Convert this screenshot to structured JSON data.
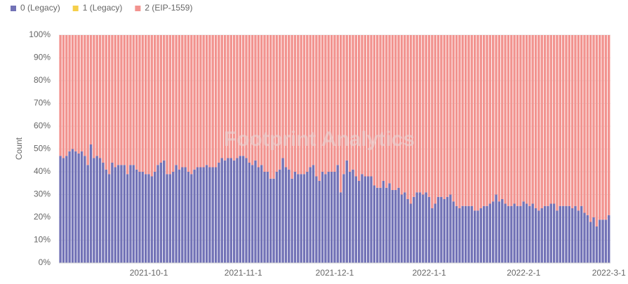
{
  "chart_data": {
    "type": "stacked_bar",
    "watermark": "Footprint Analytics",
    "y_label": "Count",
    "legend": "top-left",
    "grid": true,
    "ylim": [
      0,
      100
    ],
    "yticks": [
      {
        "value": 0,
        "label": "0%"
      },
      {
        "value": 10,
        "label": "10%"
      },
      {
        "value": 20,
        "label": "20%"
      },
      {
        "value": 30,
        "label": "30%"
      },
      {
        "value": 40,
        "label": "40%"
      },
      {
        "value": 50,
        "label": "50%"
      },
      {
        "value": 60,
        "label": "60%"
      },
      {
        "value": 70,
        "label": "70%"
      },
      {
        "value": 80,
        "label": "80%"
      },
      {
        "value": 90,
        "label": "90%"
      },
      {
        "value": 100,
        "label": "100%"
      }
    ],
    "categories": [
      null,
      null,
      null,
      null,
      null,
      null,
      null,
      null,
      null,
      null,
      null,
      null,
      null,
      null,
      null,
      null,
      null,
      null,
      null,
      null,
      null,
      null,
      null,
      null,
      null,
      null,
      null,
      null,
      null,
      "2021-10-1",
      null,
      null,
      null,
      null,
      null,
      null,
      null,
      null,
      null,
      null,
      null,
      null,
      null,
      null,
      null,
      null,
      null,
      null,
      null,
      null,
      null,
      null,
      null,
      null,
      null,
      null,
      null,
      null,
      null,
      null,
      "2021-11-1",
      null,
      null,
      null,
      null,
      null,
      null,
      null,
      null,
      null,
      null,
      null,
      null,
      null,
      null,
      null,
      null,
      null,
      null,
      null,
      null,
      null,
      null,
      null,
      null,
      null,
      null,
      null,
      null,
      null,
      "2021-12-1",
      null,
      null,
      null,
      null,
      null,
      null,
      null,
      null,
      null,
      null,
      null,
      null,
      null,
      null,
      null,
      null,
      null,
      null,
      null,
      null,
      null,
      null,
      null,
      null,
      null,
      null,
      null,
      null,
      null,
      null,
      "2022-1-1",
      null,
      null,
      null,
      null,
      null,
      null,
      null,
      null,
      null,
      null,
      null,
      null,
      null,
      null,
      null,
      null,
      null,
      null,
      null,
      null,
      null,
      null,
      null,
      null,
      null,
      null,
      null,
      null,
      null,
      null,
      "2022-2-1",
      null,
      null,
      null,
      null,
      null,
      null,
      null,
      null,
      null,
      null,
      null,
      null,
      null,
      null,
      null,
      null,
      null,
      null,
      null,
      null,
      null,
      null,
      null,
      null,
      null,
      null,
      null,
      "2022-3-1"
    ],
    "series": [
      {
        "name": "0 (Legacy)",
        "color": "#7272b6",
        "values": [
          47,
          46,
          47,
          49,
          50,
          49,
          48,
          49,
          47,
          43,
          52,
          46,
          47,
          46,
          44,
          41,
          39,
          44,
          42,
          43,
          43,
          43,
          39,
          43,
          43,
          41,
          40,
          40,
          39,
          39,
          38,
          40,
          43,
          44,
          45,
          39,
          39,
          40,
          43,
          41,
          42,
          42,
          40,
          39,
          41,
          42,
          42,
          42,
          43,
          42,
          42,
          42,
          44,
          46,
          45,
          46,
          46,
          45,
          46,
          47,
          47,
          46,
          44,
          43,
          45,
          42,
          43,
          40,
          40,
          37,
          37,
          40,
          41,
          46,
          42,
          41,
          37,
          40,
          39,
          39,
          39,
          40,
          42,
          43,
          38,
          36,
          40,
          39,
          40,
          40,
          40,
          43,
          31,
          39,
          45,
          40,
          41,
          38,
          36,
          39,
          38,
          38,
          38,
          34,
          33,
          33,
          36,
          33,
          35,
          32,
          32,
          33,
          30,
          31,
          28,
          26,
          29,
          31,
          31,
          30,
          31,
          29,
          24,
          26,
          29,
          29,
          28,
          29,
          30,
          27,
          25,
          24,
          25,
          25,
          25,
          25,
          23,
          23,
          24,
          25,
          25,
          26,
          27,
          30,
          27,
          28,
          26,
          25,
          25,
          26,
          25,
          25,
          27,
          26,
          25,
          26,
          24,
          23,
          24,
          25,
          25,
          26,
          26,
          23,
          25,
          25,
          25,
          25,
          24,
          25,
          23,
          25,
          22,
          21,
          18,
          20,
          16,
          19,
          19,
          19,
          21
        ]
      },
      {
        "name": "1 (Legacy)",
        "color": "#f5cf4a",
        "values": [
          0,
          0,
          0,
          0,
          0,
          0,
          0,
          0,
          0,
          0,
          0,
          0,
          0,
          0,
          0,
          0,
          0,
          0,
          0,
          0,
          0,
          0,
          0,
          0,
          0,
          0,
          0,
          0,
          0,
          0,
          0,
          0,
          0,
          0,
          0,
          0,
          0,
          0,
          0,
          0,
          0,
          0,
          0,
          0,
          0,
          0,
          0,
          0,
          0,
          0,
          0,
          0,
          0,
          0,
          0,
          0,
          0,
          0,
          0,
          0,
          0,
          0,
          0,
          0,
          0,
          0,
          0,
          0,
          0,
          0,
          0,
          0,
          0,
          0,
          0,
          0,
          0,
          0,
          0,
          0,
          0,
          0,
          0,
          0,
          0,
          0,
          0,
          0,
          0,
          0,
          0,
          0,
          0,
          0,
          0,
          0,
          0,
          0,
          0,
          0,
          0,
          0,
          0,
          0,
          0,
          0,
          0,
          0,
          0,
          0,
          0,
          0,
          0,
          0,
          0,
          0,
          0,
          0,
          0,
          0,
          0,
          0,
          0,
          0,
          0,
          0,
          0,
          0,
          0,
          0,
          0,
          0,
          0,
          0,
          0,
          0,
          0,
          0,
          0,
          0,
          0,
          0,
          0,
          0,
          0,
          0,
          0,
          0,
          0,
          0,
          0,
          0,
          0,
          0,
          0,
          0,
          0,
          0,
          0,
          0,
          0,
          0,
          0,
          0,
          0,
          0,
          0,
          0,
          0,
          0,
          0,
          0,
          0,
          0,
          0,
          0,
          0,
          0,
          0,
          0,
          0
        ]
      },
      {
        "name": "2 (EIP-1559)",
        "color": "#f2938f",
        "values": [
          53,
          54,
          53,
          51,
          50,
          51,
          52,
          51,
          53,
          57,
          48,
          54,
          53,
          54,
          56,
          59,
          61,
          56,
          58,
          57,
          57,
          57,
          61,
          57,
          57,
          59,
          60,
          60,
          61,
          61,
          62,
          60,
          57,
          56,
          55,
          61,
          61,
          60,
          57,
          59,
          58,
          58,
          60,
          61,
          59,
          58,
          58,
          58,
          57,
          58,
          58,
          58,
          56,
          54,
          55,
          54,
          54,
          55,
          54,
          53,
          53,
          54,
          56,
          57,
          55,
          58,
          57,
          60,
          60,
          63,
          63,
          60,
          59,
          54,
          58,
          59,
          63,
          60,
          61,
          61,
          61,
          60,
          58,
          57,
          62,
          64,
          60,
          61,
          60,
          60,
          60,
          57,
          69,
          61,
          55,
          60,
          59,
          62,
          64,
          61,
          62,
          62,
          62,
          66,
          67,
          67,
          64,
          67,
          65,
          68,
          68,
          67,
          70,
          69,
          72,
          74,
          71,
          69,
          69,
          70,
          69,
          71,
          76,
          74,
          71,
          71,
          72,
          71,
          70,
          73,
          75,
          76,
          75,
          75,
          75,
          75,
          77,
          77,
          76,
          75,
          75,
          74,
          73,
          70,
          73,
          72,
          74,
          75,
          75,
          74,
          75,
          75,
          73,
          74,
          75,
          74,
          76,
          77,
          76,
          75,
          75,
          74,
          74,
          77,
          75,
          75,
          75,
          75,
          76,
          75,
          77,
          75,
          78,
          79,
          82,
          80,
          84,
          81,
          81,
          81,
          79
        ]
      }
    ]
  }
}
